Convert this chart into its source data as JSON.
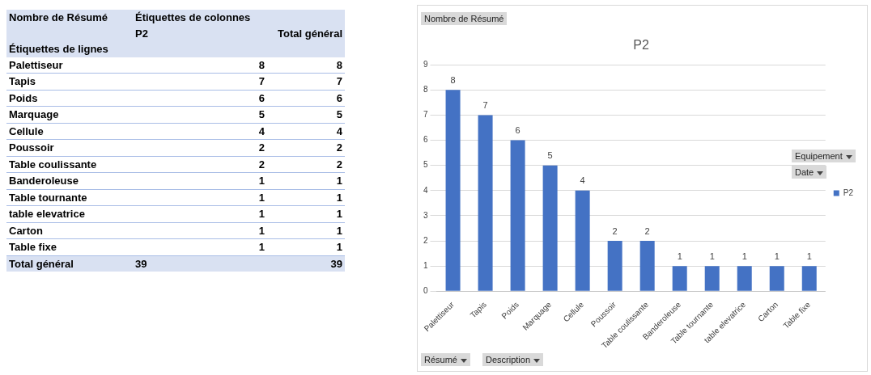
{
  "chart_data": [
    {
      "type": "other",
      "categories": [
        "Palettiseur",
        "Tapis",
        "Poids",
        "Marquage",
        "Cellule",
        "Poussoir",
        "Table coulissante",
        "Banderoleuse",
        "Table tournante",
        "table elevatrice",
        "Carton",
        "Table fixe"
      ],
      "series": [
        {
          "name": "P2",
          "values": [
            8,
            7,
            6,
            5,
            4,
            2,
            2,
            1,
            1,
            1,
            1,
            1
          ]
        },
        {
          "name": "Total général",
          "values": [
            8,
            7,
            6,
            5,
            4,
            2,
            2,
            1,
            1,
            1,
            1,
            1
          ]
        }
      ],
      "data_labels": true,
      "annotations": [
        "Nombre de Résumé",
        "Étiquettes de colonnes",
        "Étiquettes de lignes",
        "Total général",
        "39",
        "39"
      ]
    },
    {
      "type": "bar",
      "title": "P2",
      "categories": [
        "Palettiseur",
        "Tapis",
        "Poids",
        "Marquage",
        "Cellule",
        "Poussoir",
        "Table coulissante",
        "Banderoleuse",
        "Table tournante",
        "table elevatrice",
        "Carton",
        "Table fixe"
      ],
      "series": [
        {
          "name": "P2",
          "color": "#4472c4",
          "values": [
            8,
            7,
            6,
            5,
            4,
            2,
            2,
            1,
            1,
            1,
            1,
            1
          ]
        }
      ],
      "ylim": [
        0,
        9
      ],
      "yticks": [
        0,
        1,
        2,
        3,
        4,
        5,
        6,
        7,
        8,
        9
      ],
      "grid": "y",
      "legend": "right",
      "data_labels": true,
      "annotations": [
        "Nombre de Résumé",
        "Equipement",
        "Date",
        "Résumé",
        "Description"
      ]
    }
  ]
}
